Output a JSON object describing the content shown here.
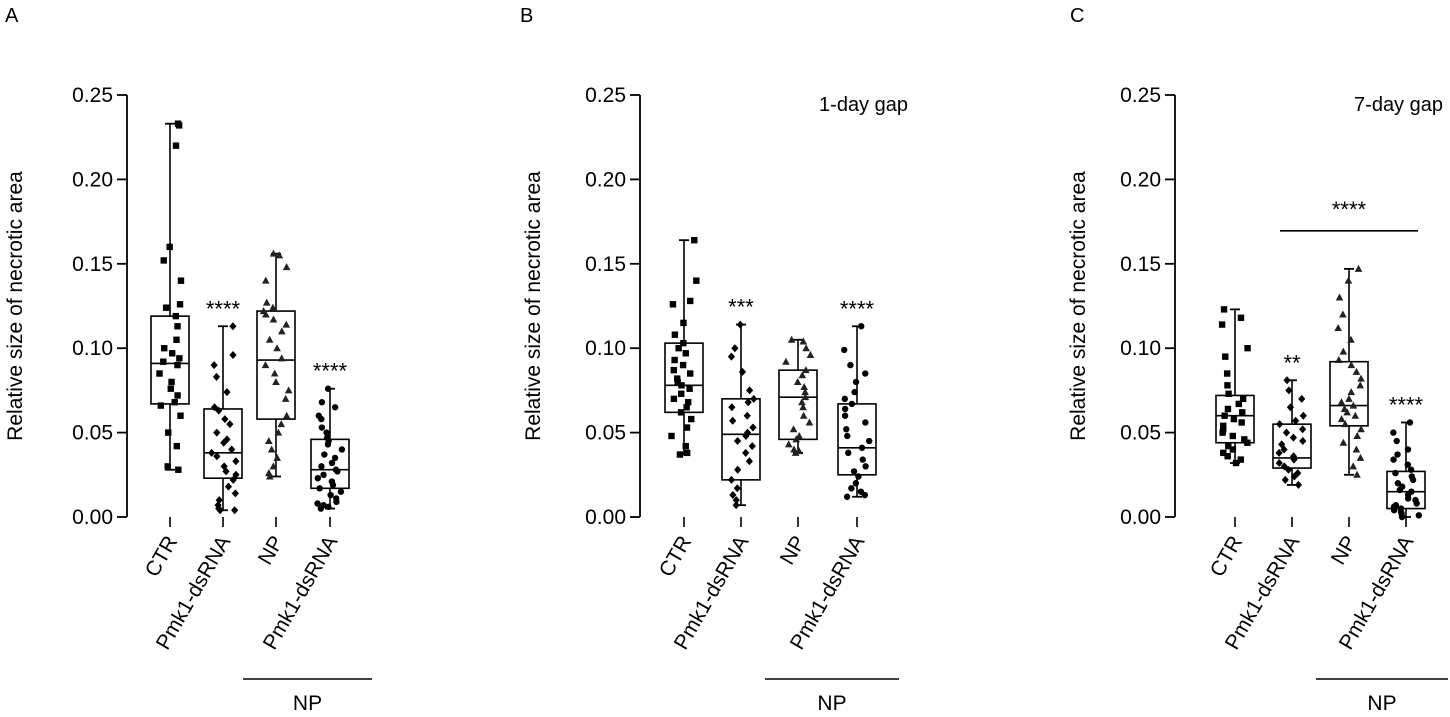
{
  "figure": {
    "ylabel": "Relative size of necrotic area",
    "group_label": "NP",
    "categories": [
      "CTR",
      "Pmk1-dsRNA",
      "NP",
      "Pmk1-dsRNA"
    ],
    "yticks": [
      "0.00",
      "0.05",
      "0.10",
      "0.15",
      "0.20",
      "0.25"
    ]
  },
  "chart_data": [
    {
      "type": "box",
      "panel_label": "A",
      "subtitle": "",
      "ylabel": "Relative size of necrotic area",
      "ylim": [
        0,
        0.25
      ],
      "categories": [
        "CTR",
        "Pmk1-dsRNA",
        "NP",
        "Pmk1-dsRNA"
      ],
      "group_label": "NP",
      "marker_shapes": [
        "square",
        "diamond",
        "triangle",
        "circle"
      ],
      "boxes": [
        {
          "min": 0.028,
          "q1": 0.067,
          "median": 0.091,
          "q3": 0.119,
          "max": 0.233
        },
        {
          "min": 0.004,
          "q1": 0.023,
          "median": 0.038,
          "q3": 0.064,
          "max": 0.113
        },
        {
          "min": 0.024,
          "q1": 0.058,
          "median": 0.093,
          "q3": 0.122,
          "max": 0.156
        },
        {
          "min": 0.005,
          "q1": 0.017,
          "median": 0.028,
          "q3": 0.046,
          "max": 0.076
        }
      ],
      "points": [
        [
          0.233,
          0.232,
          0.22,
          0.16,
          0.152,
          0.14,
          0.126,
          0.124,
          0.119,
          0.113,
          0.105,
          0.1,
          0.097,
          0.094,
          0.092,
          0.09,
          0.085,
          0.08,
          0.076,
          0.072,
          0.068,
          0.066,
          0.06,
          0.05,
          0.042,
          0.03,
          0.028
        ],
        [
          0.113,
          0.096,
          0.09,
          0.083,
          0.074,
          0.065,
          0.063,
          0.058,
          0.055,
          0.05,
          0.046,
          0.044,
          0.04,
          0.038,
          0.036,
          0.033,
          0.03,
          0.027,
          0.025,
          0.022,
          0.018,
          0.014,
          0.01,
          0.007,
          0.005,
          0.004,
          0.004
        ],
        [
          0.156,
          0.155,
          0.148,
          0.14,
          0.127,
          0.124,
          0.122,
          0.12,
          0.117,
          0.114,
          0.11,
          0.105,
          0.1,
          0.094,
          0.09,
          0.085,
          0.08,
          0.075,
          0.07,
          0.06,
          0.055,
          0.05,
          0.045,
          0.04,
          0.035,
          0.03,
          0.026,
          0.024
        ],
        [
          0.076,
          0.068,
          0.065,
          0.06,
          0.058,
          0.053,
          0.05,
          0.047,
          0.045,
          0.043,
          0.04,
          0.037,
          0.035,
          0.032,
          0.03,
          0.028,
          0.027,
          0.025,
          0.023,
          0.021,
          0.019,
          0.017,
          0.015,
          0.013,
          0.011,
          0.009,
          0.008,
          0.007,
          0.006,
          0.005
        ]
      ],
      "significance": [
        "",
        "****",
        "",
        "****"
      ],
      "comparison": null
    },
    {
      "type": "box",
      "panel_label": "B",
      "subtitle": "1-day gap",
      "ylabel": "Relative size of necrotic area",
      "ylim": [
        0,
        0.25
      ],
      "categories": [
        "CTR",
        "Pmk1-dsRNA",
        "NP",
        "Pmk1-dsRNA"
      ],
      "group_label": "NP",
      "marker_shapes": [
        "square",
        "diamond",
        "triangle",
        "circle"
      ],
      "boxes": [
        {
          "min": 0.037,
          "q1": 0.062,
          "median": 0.078,
          "q3": 0.103,
          "max": 0.164
        },
        {
          "min": 0.007,
          "q1": 0.022,
          "median": 0.049,
          "q3": 0.07,
          "max": 0.114
        },
        {
          "min": 0.038,
          "q1": 0.046,
          "median": 0.071,
          "q3": 0.087,
          "max": 0.105
        },
        {
          "min": 0.012,
          "q1": 0.025,
          "median": 0.041,
          "q3": 0.067,
          "max": 0.113
        }
      ],
      "points": [
        [
          0.164,
          0.14,
          0.128,
          0.126,
          0.115,
          0.108,
          0.103,
          0.1,
          0.097,
          0.093,
          0.09,
          0.087,
          0.085,
          0.082,
          0.08,
          0.078,
          0.076,
          0.073,
          0.07,
          0.068,
          0.065,
          0.062,
          0.058,
          0.053,
          0.048,
          0.042,
          0.038,
          0.037
        ],
        [
          0.114,
          0.1,
          0.095,
          0.086,
          0.075,
          0.07,
          0.068,
          0.065,
          0.06,
          0.057,
          0.053,
          0.05,
          0.048,
          0.045,
          0.042,
          0.038,
          0.033,
          0.028,
          0.022,
          0.017,
          0.013,
          0.01,
          0.007
        ],
        [
          0.105,
          0.104,
          0.1,
          0.096,
          0.092,
          0.087,
          0.084,
          0.08,
          0.077,
          0.074,
          0.071,
          0.068,
          0.065,
          0.06,
          0.056,
          0.052,
          0.048,
          0.046,
          0.043,
          0.04,
          0.039,
          0.038
        ],
        [
          0.113,
          0.099,
          0.09,
          0.085,
          0.08,
          0.074,
          0.07,
          0.067,
          0.064,
          0.06,
          0.056,
          0.052,
          0.048,
          0.045,
          0.041,
          0.038,
          0.034,
          0.03,
          0.027,
          0.024,
          0.02,
          0.017,
          0.015,
          0.013,
          0.012
        ]
      ],
      "significance": [
        "",
        "***",
        "",
        "****"
      ],
      "comparison": null
    },
    {
      "type": "box",
      "panel_label": "C",
      "subtitle": "7-day gap",
      "ylabel": "Relative size of necrotic area",
      "ylim": [
        0,
        0.25
      ],
      "categories": [
        "CTR",
        "Pmk1-dsRNA",
        "NP",
        "Pmk1-dsRNA"
      ],
      "group_label": "NP",
      "marker_shapes": [
        "square",
        "diamond",
        "triangle",
        "circle"
      ],
      "boxes": [
        {
          "min": 0.032,
          "q1": 0.044,
          "median": 0.06,
          "q3": 0.072,
          "max": 0.123
        },
        {
          "min": 0.019,
          "q1": 0.029,
          "median": 0.035,
          "q3": 0.055,
          "max": 0.081
        },
        {
          "min": 0.025,
          "q1": 0.054,
          "median": 0.066,
          "q3": 0.092,
          "max": 0.147
        },
        {
          "min": 0.0,
          "q1": 0.005,
          "median": 0.015,
          "q3": 0.027,
          "max": 0.056
        }
      ],
      "points": [
        [
          0.123,
          0.118,
          0.114,
          0.1,
          0.095,
          0.085,
          0.078,
          0.073,
          0.07,
          0.067,
          0.064,
          0.062,
          0.06,
          0.058,
          0.056,
          0.054,
          0.052,
          0.05,
          0.048,
          0.046,
          0.044,
          0.042,
          0.04,
          0.038,
          0.036,
          0.034,
          0.032
        ],
        [
          0.081,
          0.075,
          0.07,
          0.065,
          0.06,
          0.057,
          0.055,
          0.052,
          0.05,
          0.047,
          0.045,
          0.043,
          0.04,
          0.038,
          0.036,
          0.034,
          0.032,
          0.03,
          0.028,
          0.026,
          0.024,
          0.022,
          0.019
        ],
        [
          0.147,
          0.14,
          0.13,
          0.12,
          0.112,
          0.105,
          0.098,
          0.093,
          0.09,
          0.086,
          0.082,
          0.078,
          0.074,
          0.07,
          0.068,
          0.066,
          0.064,
          0.062,
          0.06,
          0.058,
          0.055,
          0.052,
          0.048,
          0.044,
          0.04,
          0.035,
          0.03,
          0.025
        ],
        [
          0.056,
          0.05,
          0.045,
          0.04,
          0.037,
          0.034,
          0.031,
          0.028,
          0.026,
          0.024,
          0.022,
          0.02,
          0.018,
          0.016,
          0.015,
          0.013,
          0.011,
          0.01,
          0.008,
          0.007,
          0.006,
          0.005,
          0.004,
          0.003,
          0.002,
          0.001,
          0.0
        ]
      ],
      "significance": [
        "",
        "**",
        "",
        "****"
      ],
      "comparison": {
        "from": 1,
        "to": 3,
        "label": "****",
        "y": 0.179
      }
    }
  ]
}
